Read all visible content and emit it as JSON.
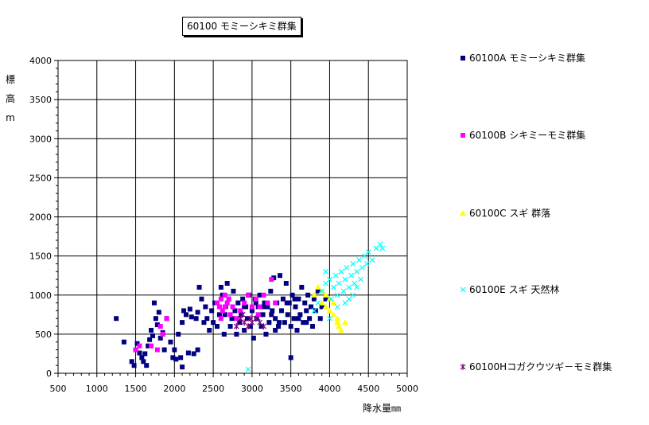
{
  "chart_data": {
    "type": "scatter",
    "title": "60100 モミーシキミ群集",
    "xlabel": "降水量㎜",
    "ylabel": "標高m",
    "xlim": [
      500,
      5000
    ],
    "ylim": [
      0,
      4000
    ],
    "xticks": [
      500,
      1000,
      1500,
      2000,
      2500,
      3000,
      3500,
      4000,
      4500,
      5000
    ],
    "yticks": [
      0,
      500,
      1000,
      1500,
      2000,
      2500,
      3000,
      3500,
      4000
    ],
    "grid": true,
    "legend_position": "right",
    "series": [
      {
        "name": "60100A モミーシキミ群集",
        "marker": "square",
        "color": "#000080",
        "points": [
          [
            1250,
            700
          ],
          [
            1350,
            400
          ],
          [
            1450,
            150
          ],
          [
            1480,
            100
          ],
          [
            1500,
            300
          ],
          [
            1520,
            380
          ],
          [
            1550,
            260
          ],
          [
            1580,
            200
          ],
          [
            1600,
            150
          ],
          [
            1620,
            250
          ],
          [
            1640,
            100
          ],
          [
            1660,
            350
          ],
          [
            1680,
            430
          ],
          [
            1700,
            550
          ],
          [
            1720,
            480
          ],
          [
            1740,
            900
          ],
          [
            1760,
            700
          ],
          [
            1780,
            620
          ],
          [
            1800,
            780
          ],
          [
            1820,
            450
          ],
          [
            1850,
            520
          ],
          [
            1870,
            300
          ],
          [
            1900,
            700
          ],
          [
            1950,
            400
          ],
          [
            1980,
            200
          ],
          [
            2000,
            300
          ],
          [
            2020,
            180
          ],
          [
            2050,
            500
          ],
          [
            2080,
            200
          ],
          [
            2100,
            650
          ],
          [
            2120,
            800
          ],
          [
            2150,
            750
          ],
          [
            2180,
            260
          ],
          [
            2200,
            820
          ],
          [
            2220,
            720
          ],
          [
            2250,
            250
          ],
          [
            2280,
            700
          ],
          [
            2300,
            780
          ],
          [
            2320,
            1100
          ],
          [
            2350,
            950
          ],
          [
            2380,
            650
          ],
          [
            2400,
            850
          ],
          [
            2420,
            700
          ],
          [
            2450,
            550
          ],
          [
            2480,
            800
          ],
          [
            2500,
            650
          ],
          [
            2520,
            900
          ],
          [
            2550,
            600
          ],
          [
            2580,
            750
          ],
          [
            2600,
            1100
          ],
          [
            2620,
            1000
          ],
          [
            2640,
            500
          ],
          [
            2660,
            850
          ],
          [
            2680,
            1150
          ],
          [
            2700,
            950
          ],
          [
            2720,
            600
          ],
          [
            2740,
            700
          ],
          [
            2760,
            1050
          ],
          [
            2780,
            800
          ],
          [
            2800,
            500
          ],
          [
            2820,
            900
          ],
          [
            2840,
            650
          ],
          [
            2860,
            750
          ],
          [
            2880,
            950
          ],
          [
            2900,
            550
          ],
          [
            2920,
            850
          ],
          [
            2940,
            700
          ],
          [
            2960,
            1000
          ],
          [
            2980,
            600
          ],
          [
            3000,
            800
          ],
          [
            3020,
            450
          ],
          [
            3040,
            950
          ],
          [
            3060,
            700
          ],
          [
            3080,
            850
          ],
          [
            3100,
            1000
          ],
          [
            3120,
            600
          ],
          [
            3140,
            750
          ],
          [
            3160,
            900
          ],
          [
            3180,
            500
          ],
          [
            3200,
            850
          ],
          [
            3220,
            650
          ],
          [
            3240,
            1050
          ],
          [
            3260,
            800
          ],
          [
            3280,
            1220
          ],
          [
            3300,
            700
          ],
          [
            3320,
            900
          ],
          [
            3340,
            600
          ],
          [
            3360,
            1250
          ],
          [
            3380,
            800
          ],
          [
            3400,
            950
          ],
          [
            3420,
            650
          ],
          [
            3440,
            1150
          ],
          [
            3460,
            750
          ],
          [
            3480,
            900
          ],
          [
            3500,
            600
          ],
          [
            3520,
            1000
          ],
          [
            3540,
            700
          ],
          [
            3560,
            850
          ],
          [
            3580,
            550
          ],
          [
            3600,
            950
          ],
          [
            3620,
            750
          ],
          [
            3640,
            1100
          ],
          [
            3660,
            650
          ],
          [
            3680,
            900
          ],
          [
            3700,
            800
          ],
          [
            3720,
            1000
          ],
          [
            3740,
            700
          ],
          [
            3760,
            850
          ],
          [
            3780,
            600
          ],
          [
            3800,
            950
          ],
          [
            3820,
            800
          ],
          [
            3850,
            1050
          ],
          [
            3880,
            700
          ],
          [
            3900,
            850
          ],
          [
            3950,
            950
          ],
          [
            3500,
            200
          ],
          [
            2100,
            80
          ],
          [
            2300,
            300
          ],
          [
            2900,
            850
          ],
          [
            3300,
            550
          ],
          [
            3050,
            900
          ],
          [
            3450,
            900
          ],
          [
            3550,
            950
          ],
          [
            3150,
            850
          ],
          [
            2750,
            850
          ],
          [
            2650,
            750
          ],
          [
            3250,
            750
          ],
          [
            3350,
            650
          ],
          [
            3600,
            700
          ],
          [
            3700,
            650
          ]
        ]
      },
      {
        "name": "60100B シキミーモミ群集",
        "marker": "square",
        "color": "#ff00ff",
        "points": [
          [
            1500,
            300
          ],
          [
            1550,
            350
          ],
          [
            1700,
            350
          ],
          [
            1780,
            300
          ],
          [
            1820,
            600
          ],
          [
            1850,
            500
          ],
          [
            1900,
            700
          ],
          [
            2550,
            900
          ],
          [
            2580,
            850
          ],
          [
            2600,
            950
          ],
          [
            2620,
            800
          ],
          [
            2650,
            1000
          ],
          [
            2680,
            900
          ],
          [
            2700,
            950
          ],
          [
            2720,
            750
          ],
          [
            2750,
            850
          ],
          [
            2800,
            700
          ],
          [
            2850,
            800
          ],
          [
            2900,
            900
          ],
          [
            2950,
            1000
          ],
          [
            3000,
            850
          ],
          [
            3050,
            950
          ],
          [
            3100,
            850
          ],
          [
            3150,
            1000
          ],
          [
            3200,
            900
          ],
          [
            3250,
            1200
          ],
          [
            3300,
            900
          ],
          [
            2600,
            700
          ],
          [
            2650,
            850
          ],
          [
            3080,
            750
          ]
        ]
      },
      {
        "name": "60100C スギ 群落",
        "marker": "triangle",
        "color": "#ffff00",
        "points": [
          [
            3800,
            1000
          ],
          [
            3850,
            1100
          ],
          [
            3900,
            900
          ],
          [
            3950,
            850
          ],
          [
            4000,
            800
          ],
          [
            4050,
            750
          ],
          [
            4100,
            650
          ],
          [
            4120,
            600
          ],
          [
            4150,
            550
          ],
          [
            4200,
            650
          ],
          [
            4000,
            950
          ],
          [
            3900,
            1050
          ],
          [
            4050,
            900
          ],
          [
            3950,
            1000
          ],
          [
            4100,
            700
          ]
        ]
      },
      {
        "name": "60100E スギ 天然林",
        "marker": "x",
        "color": "#00ffff",
        "points": [
          [
            3800,
            800
          ],
          [
            3850,
            900
          ],
          [
            3900,
            1050
          ],
          [
            3950,
            1150
          ],
          [
            4000,
            1200
          ],
          [
            4020,
            950
          ],
          [
            4050,
            1100
          ],
          [
            4080,
            1250
          ],
          [
            4100,
            1000
          ],
          [
            4120,
            1150
          ],
          [
            4150,
            1300
          ],
          [
            4180,
            1050
          ],
          [
            4200,
            1200
          ],
          [
            4220,
            1350
          ],
          [
            4250,
            1100
          ],
          [
            4280,
            1250
          ],
          [
            4300,
            1400
          ],
          [
            4320,
            1150
          ],
          [
            4350,
            1300
          ],
          [
            4380,
            1450
          ],
          [
            4400,
            1200
          ],
          [
            4420,
            1350
          ],
          [
            4450,
            1500
          ],
          [
            4480,
            1400
          ],
          [
            4500,
            1550
          ],
          [
            4550,
            1450
          ],
          [
            4600,
            1600
          ],
          [
            4650,
            1650
          ],
          [
            4680,
            1600
          ],
          [
            4000,
            700
          ],
          [
            4100,
            850
          ],
          [
            4200,
            900
          ],
          [
            4300,
            1000
          ],
          [
            2950,
            50
          ],
          [
            3950,
            1300
          ],
          [
            4250,
            950
          ],
          [
            4350,
            1100
          ]
        ]
      },
      {
        "name": "60100Hコガクウツギ－モミ群集",
        "marker": "star",
        "color": "#800080",
        "points": [
          [
            2800,
            600
          ],
          [
            2850,
            700
          ],
          [
            2900,
            650
          ],
          [
            2950,
            600
          ],
          [
            3000,
            650
          ],
          [
            3050,
            700
          ],
          [
            3100,
            650
          ],
          [
            2880,
            750
          ],
          [
            2980,
            700
          ],
          [
            3150,
            600
          ]
        ]
      }
    ]
  }
}
